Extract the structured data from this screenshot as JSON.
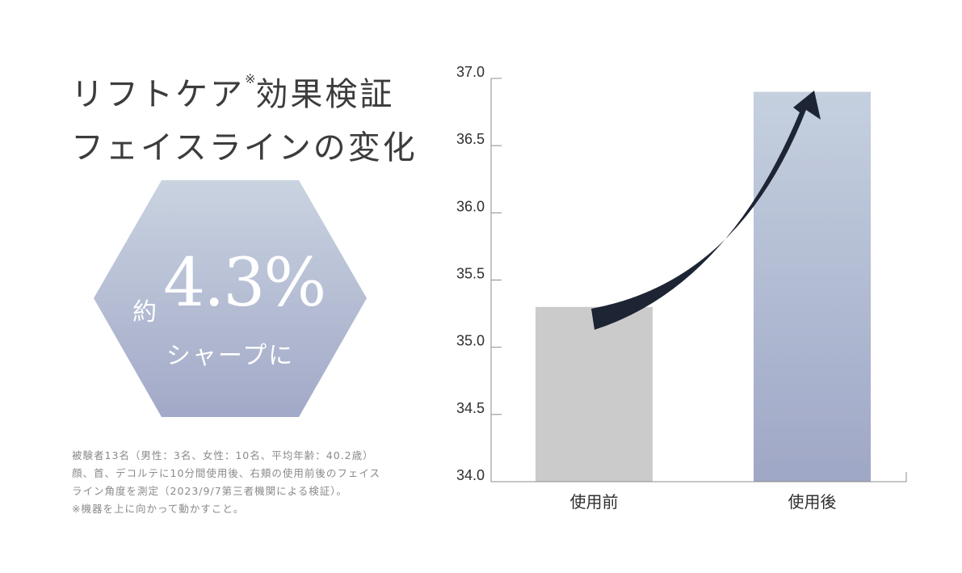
{
  "heading": {
    "line1_text": "リフトケア",
    "line1_mark": "※",
    "line1_rest": "効果検証",
    "line2": "フェイスラインの変化"
  },
  "badge": {
    "prefix": "約",
    "value": "4.3%",
    "subtitle": "シャープに",
    "gradient_top": "#c9d3e0",
    "gradient_bottom": "#a2a9c8"
  },
  "notes": [
    "被験者13名（男性：3名、女性：10名、平均年齢：40.2歳）",
    "顔、首、デコルテに10分間使用後、右頬の使用前後のフェイス",
    "ライン角度を測定（2023/9/7第三者機関による検証）。",
    "※機器を上に向かって動かすこと。"
  ],
  "chart_data": {
    "type": "bar",
    "categories": [
      "使用前",
      "使用後"
    ],
    "values": [
      35.3,
      36.9
    ],
    "ylim": [
      34.0,
      37.0
    ],
    "yticks": [
      "34.0",
      "34.5",
      "35.0",
      "35.5",
      "36.0",
      "36.5",
      "37.0"
    ],
    "title": "",
    "xlabel": "",
    "ylabel": "",
    "grid": false,
    "colors": {
      "before_bar": "#cbcbcb",
      "after_bar_top": "#c5d0df",
      "after_bar_bottom": "#9fa7c6",
      "arrow": "#1d2433",
      "axis": "#8c8c8c"
    }
  }
}
